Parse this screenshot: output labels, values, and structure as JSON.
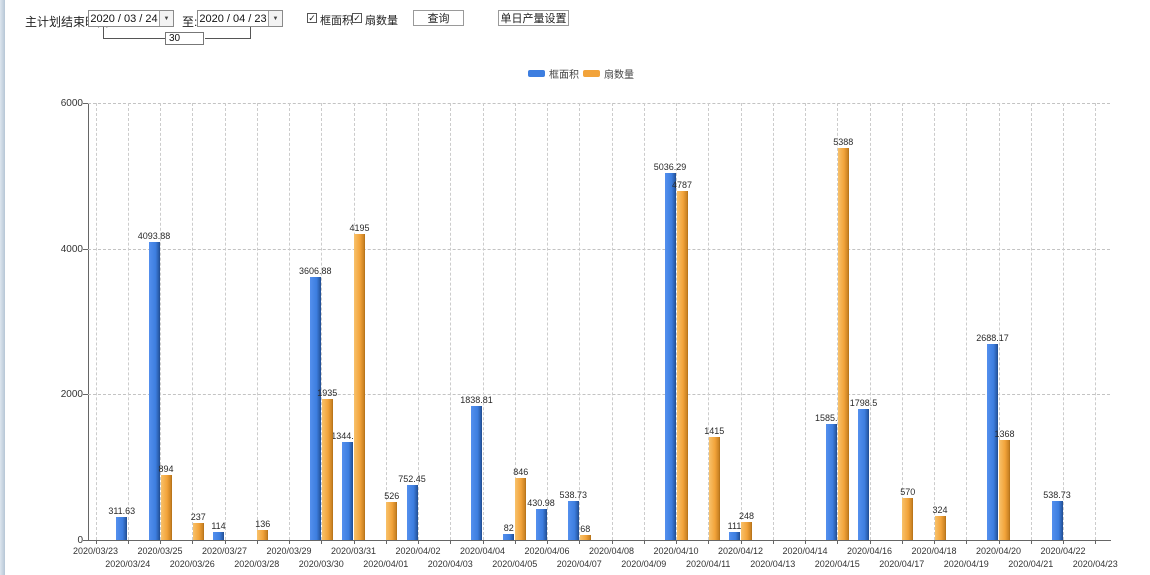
{
  "toolbar": {
    "label": "主计划结束时间:",
    "date_from": "2020 / 03 / 24",
    "to_label": "至:",
    "date_to": "2020 / 04 / 23",
    "interval_value": "30",
    "checkboxes": [
      {
        "label": "框面积",
        "checked": true
      },
      {
        "label": "扇数量",
        "checked": true
      }
    ],
    "query_button": "查询",
    "daily_output_button": "单日产量设置",
    "checkmark": "✓",
    "dropdown_glyph": "▼"
  },
  "legend": {
    "items": [
      {
        "label": "框面积",
        "color": "#3d7ee0"
      },
      {
        "label": "扇数量",
        "color": "#f2a33a"
      }
    ]
  },
  "chart_data": {
    "type": "bar",
    "title": "",
    "xlabel": "",
    "ylabel": "",
    "ylim": [
      0,
      6000
    ],
    "yticks": [
      0,
      2000,
      4000,
      6000
    ],
    "grid": true,
    "legend_position": "top-center",
    "categories": [
      "2020/03/23",
      "2020/03/24",
      "2020/03/25",
      "2020/03/26",
      "2020/03/27",
      "2020/03/28",
      "2020/03/29",
      "2020/03/30",
      "2020/03/31",
      "2020/04/01",
      "2020/04/02",
      "2020/04/03",
      "2020/04/04",
      "2020/04/05",
      "2020/04/06",
      "2020/04/07",
      "2020/04/08",
      "2020/04/09",
      "2020/04/10",
      "2020/04/11",
      "2020/04/12",
      "2020/04/13",
      "2020/04/14",
      "2020/04/15",
      "2020/04/16",
      "2020/04/17",
      "2020/04/18",
      "2020/04/19",
      "2020/04/20",
      "2020/04/21",
      "2020/04/22",
      "2020/04/23"
    ],
    "series": [
      {
        "name": "框面积",
        "color": "#3d7ee0",
        "values": [
          null,
          311.63,
          4093.88,
          null,
          114,
          null,
          null,
          3606.88,
          1344.95,
          null,
          752.45,
          null,
          1838.81,
          82,
          430.98,
          538.73,
          null,
          null,
          5036.29,
          null,
          111,
          null,
          null,
          1585.96,
          1798.5,
          null,
          null,
          null,
          2688.17,
          null,
          538.73,
          null
        ]
      },
      {
        "name": "扇数量",
        "color": "#f2a33a",
        "values": [
          null,
          null,
          894,
          237,
          null,
          136,
          null,
          1935,
          4195,
          526,
          null,
          null,
          null,
          846,
          null,
          68,
          null,
          null,
          4787,
          1415,
          248,
          null,
          null,
          5388,
          null,
          570,
          324,
          null,
          1368,
          null,
          null,
          null
        ]
      }
    ]
  }
}
